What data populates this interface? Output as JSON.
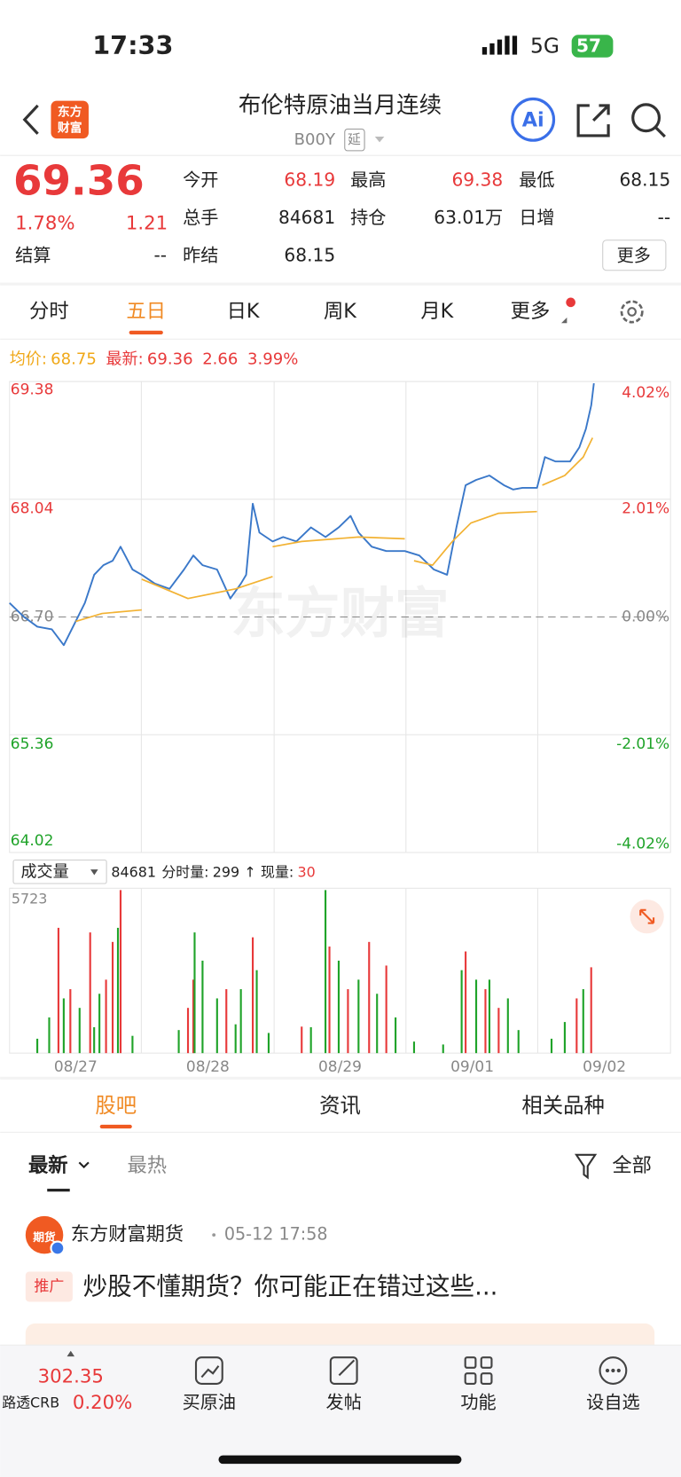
{
  "status_bar": {
    "time": "17:33",
    "network": "5G",
    "battery": "57"
  },
  "header": {
    "logo": [
      "东方",
      "财富"
    ],
    "title": "布伦特原油当月连续",
    "code": "B00Y",
    "tag": "延",
    "ai": "Ai"
  },
  "quote": {
    "price": 69.36,
    "change_pct": "1.78%",
    "change": 1.21,
    "fields": [
      {
        "label": "今开",
        "value": 68.19
      },
      {
        "label": "最高",
        "value": 69.38
      },
      {
        "label": "最低",
        "value": 68.15
      },
      {
        "label": "总手",
        "value": 84681
      },
      {
        "label": "持仓",
        "value": "63.01万"
      },
      {
        "label": "日增",
        "value": "--"
      },
      {
        "label": "昨结",
        "value": 68.15
      }
    ],
    "settle_label": "结算",
    "settle_value": "--",
    "more": "更多"
  },
  "tabs": [
    "分时",
    "五日",
    "日K",
    "周K",
    "月K",
    "更多"
  ],
  "legend": {
    "avg_label": "均价:",
    "avg": 68.75,
    "last_label": "最新:",
    "last": 69.36,
    "change": 2.66,
    "change_pct": "3.99%"
  },
  "watermark": "东方财富",
  "chart_data": [
    {
      "type": "line",
      "xlim": [
        0,
        5
      ],
      "ylim": [
        64.02,
        69.38
      ],
      "yticks": [
        64.02,
        65.36,
        {
          "value": 66.7,
          "label": "66.70"
        },
        68.04,
        69.38
      ],
      "y2lim": [
        -4.02,
        4.02
      ],
      "y2ticks": [
        {
          "value": -4.02,
          "label": "-4.02%"
        },
        {
          "value": -2.01,
          "label": "-2.01%"
        },
        {
          "value": 0,
          "label": "0.00%"
        },
        {
          "value": 2.01,
          "label": "2.01%"
        },
        {
          "value": 4.02,
          "label": "4.02%"
        }
      ],
      "series": [
        {
          "name": "最新",
          "color": "#3a78c9",
          "x": [
            0,
            0.11,
            0.21,
            0.32,
            0.41,
            0.5,
            0.57,
            0.64,
            0.71,
            0.78,
            0.84,
            0.93,
            1.0,
            1.1,
            1.21,
            1.32,
            1.39,
            1.46,
            1.57,
            1.67,
            1.75,
            1.79,
            1.84,
            1.89,
            1.99,
            2.07,
            2.17,
            2.28,
            2.39,
            2.49,
            2.58,
            2.64,
            2.74,
            2.85,
            2.99,
            3.1,
            3.21,
            3.31,
            3.38,
            3.45,
            3.53,
            3.63,
            3.74,
            3.81,
            3.88,
            3.99,
            4.05,
            4.13,
            4.24,
            4.31,
            4.36,
            4.4,
            4.42
          ],
          "values": [
            66.86,
            66.7,
            66.59,
            66.56,
            66.38,
            66.65,
            66.86,
            67.18,
            67.29,
            67.34,
            67.5,
            67.24,
            67.18,
            67.08,
            67.02,
            67.24,
            67.4,
            67.29,
            67.24,
            66.91,
            67.08,
            67.18,
            67.99,
            67.66,
            67.56,
            67.61,
            67.56,
            67.72,
            67.61,
            67.72,
            67.85,
            67.66,
            67.5,
            67.45,
            67.45,
            67.4,
            67.24,
            67.18,
            67.72,
            68.2,
            68.26,
            68.31,
            68.2,
            68.15,
            68.17,
            68.17,
            68.52,
            68.47,
            68.47,
            68.63,
            68.84,
            69.11,
            69.36
          ]
        },
        {
          "name": "均价",
          "color": "#f2b233",
          "x": [
            0.5,
            0.7,
            1.0,
            null,
            1.0,
            1.35,
            1.71,
            1.99,
            null,
            1.99,
            2.21,
            2.64,
            2.99,
            null,
            3.06,
            3.2,
            3.35,
            3.49,
            3.7,
            3.99,
            null,
            4.03,
            4.2,
            4.34,
            4.41
          ],
          "values": [
            66.65,
            66.74,
            66.78,
            null,
            67.13,
            66.91,
            67.02,
            67.16,
            null,
            67.5,
            67.56,
            67.61,
            67.59,
            null,
            67.34,
            67.29,
            67.56,
            67.77,
            67.88,
            67.9,
            null,
            68.2,
            68.31,
            68.52,
            68.74
          ]
        }
      ]
    },
    {
      "type": "bar",
      "xlim": [
        0,
        5
      ],
      "ylim": [
        0,
        5723
      ],
      "yticks": [
        5723
      ],
      "xticks": [
        {
          "value": 0.5,
          "label": "08/27"
        },
        {
          "value": 1.5,
          "label": "08/28"
        },
        {
          "value": 2.5,
          "label": "08/29"
        },
        {
          "value": 3.5,
          "label": "09/01"
        },
        {
          "value": 4.5,
          "label": "09/02"
        }
      ],
      "series": [
        {
          "name": "涨",
          "color": "#e8393a",
          "x": [
            0.37,
            0.46,
            0.61,
            0.73,
            0.78,
            0.84,
            1.35,
            1.39,
            1.64,
            1.84,
            2.21,
            2.42,
            2.56,
            2.72,
            2.85,
            3.45,
            3.6,
            3.7,
            4.29,
            4.4
          ],
          "values": [
            4350,
            2220,
            4190,
            2550,
            3860,
            5660,
            1570,
            2550,
            2220,
            4020,
            920,
            3700,
            2220,
            3860,
            3040,
            3530,
            2220,
            1570,
            1900,
            2980
          ]
        },
        {
          "name": "跌",
          "color": "#1fa329",
          "x": [
            0.3,
            0.41,
            0.53,
            0.68,
            0.82,
            1.4,
            1.46,
            1.57,
            1.75,
            1.87,
            2.39,
            2.49,
            2.64,
            2.78,
            2.92,
            3.42,
            3.53,
            3.63,
            3.77,
            4.2,
            4.34,
            0.21,
            0.64,
            0.93,
            1.28,
            1.71,
            1.96,
            2.28,
            3.06,
            3.28,
            3.85,
            4.1
          ],
          "values": [
            1240,
            1900,
            1570,
            2060,
            4350,
            4190,
            3210,
            1900,
            2220,
            2880,
            5660,
            3210,
            2550,
            2060,
            1240,
            2880,
            2550,
            2550,
            1900,
            1080,
            2220,
            500,
            900,
            600,
            800,
            1000,
            700,
            900,
            400,
            300,
            800,
            500
          ]
        }
      ]
    }
  ],
  "volume_bar": {
    "selector": "成交量",
    "total": 84681,
    "tick_label": "分时量:",
    "tick_value": 299,
    "arrow": "↑",
    "now_label": "现量:",
    "now_value": 30
  },
  "section_tabs": [
    "股吧",
    "资讯",
    "相关品种"
  ],
  "sort": {
    "latest": "最新",
    "hot": "最热",
    "filter": "全部"
  },
  "post": {
    "avatar": "期货",
    "author": "东方财富期货",
    "time": "05-12 17:58",
    "badge": "推广",
    "text": "炒股不懂期货？你可能正在错过这些..."
  },
  "bottom_bar": {
    "index_value": 302.35,
    "index_name": "路透CRB",
    "index_pct": "0.20%",
    "buttons": [
      "买原油",
      "发帖",
      "功能",
      "设自选"
    ]
  }
}
